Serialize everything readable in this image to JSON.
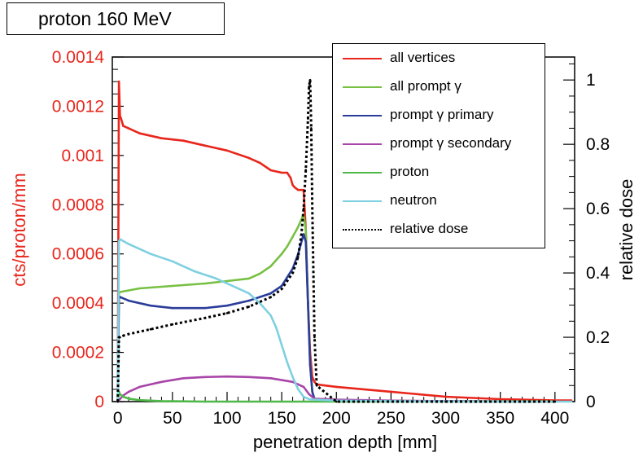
{
  "title": "proton 160 MeV",
  "chart_data": {
    "type": "line",
    "xlabel": "penetration depth [mm]",
    "ylabel_left": "cts/proton/mm",
    "ylabel_right": "relative dose",
    "xlim": [
      -5,
      418
    ],
    "ylim_left": [
      0,
      0.0014
    ],
    "ylim_right": [
      0,
      1.0714
    ],
    "x_ticks": [
      "0",
      "50",
      "100",
      "150",
      "200",
      "250",
      "300",
      "350",
      "400"
    ],
    "y_left_ticks": [
      "0",
      "0.0002",
      "0.0004",
      "0.0006",
      "0.0008",
      "0.001",
      "0.0012",
      "0.0014"
    ],
    "y_right_ticks": [
      "0",
      "0.2",
      "0.4",
      "0.6",
      "0.8",
      "1"
    ],
    "legend_position": "top-right",
    "colors": {
      "all_vertices": "#e8261c",
      "all_prompt_gamma": "#77c043",
      "prompt_gamma_primary": "#2b3d9a",
      "prompt_gamma_secondary": "#a845a8",
      "proton": "#4fb848",
      "neutron": "#7fd0e0",
      "relative_dose": "#000000",
      "left_axis": "#e8261c"
    },
    "series": [
      {
        "name": "all vertices",
        "key": "all_vertices",
        "axis": "left",
        "x": [
          0,
          1,
          2,
          3,
          5,
          10,
          20,
          40,
          60,
          80,
          100,
          120,
          130,
          140,
          150,
          155,
          158,
          160,
          162,
          165,
          168,
          170,
          172,
          174,
          176,
          178,
          180,
          182,
          200,
          250,
          300,
          350,
          400,
          415
        ],
        "y": [
          0.0,
          0.0013,
          0.00116,
          0.00115,
          0.00112,
          0.00111,
          0.00109,
          0.00107,
          0.00106,
          0.00104,
          0.00102,
          0.00099,
          0.00097,
          0.00094,
          0.00093,
          0.00093,
          0.00091,
          0.00088,
          0.00087,
          0.00086,
          0.00086,
          0.00086,
          0.0007,
          0.0004,
          0.0002,
          0.0001,
          8e-05,
          7e-05,
          6e-05,
          4e-05,
          2e-05,
          1e-05,
          5e-06,
          5e-06
        ]
      },
      {
        "name": "all prompt γ",
        "key": "all_prompt_gamma",
        "axis": "left",
        "x": [
          0,
          1,
          2,
          20,
          50,
          80,
          100,
          120,
          130,
          140,
          150,
          155,
          160,
          165,
          168,
          170,
          172,
          174,
          176,
          178,
          180,
          200,
          300,
          400
        ],
        "y": [
          0.0,
          0.00044,
          0.000445,
          0.00046,
          0.00047,
          0.00048,
          0.00049,
          0.0005,
          0.00052,
          0.00055,
          0.0006,
          0.00063,
          0.00067,
          0.00071,
          0.00074,
          0.00076,
          0.0007,
          0.0004,
          0.00015,
          4e-05,
          1e-05,
          5e-06,
          2e-06,
          1e-06
        ]
      },
      {
        "name": "prompt γ primary",
        "key": "prompt_gamma_primary",
        "axis": "left",
        "x": [
          0,
          1,
          2,
          10,
          30,
          50,
          80,
          100,
          120,
          140,
          150,
          160,
          165,
          170,
          172,
          174,
          176,
          178,
          180,
          200,
          300,
          400
        ],
        "y": [
          0.0,
          0.00042,
          0.000425,
          0.00041,
          0.00039,
          0.00038,
          0.00038,
          0.00039,
          0.00041,
          0.00044,
          0.00047,
          0.00054,
          0.0006,
          0.00068,
          0.00065,
          0.0004,
          0.00015,
          4e-05,
          1e-05,
          3e-06,
          1e-06,
          0.0
        ]
      },
      {
        "name": "prompt γ secondary",
        "key": "prompt_gamma_secondary",
        "axis": "left",
        "x": [
          0,
          5,
          10,
          20,
          40,
          60,
          80,
          100,
          120,
          140,
          160,
          170,
          175,
          180,
          200,
          250,
          300,
          350,
          400
        ],
        "y": [
          0.0,
          2.5e-05,
          4e-05,
          6e-05,
          8e-05,
          9.5e-05,
          0.0001,
          0.000102,
          0.0001,
          9.5e-05,
          8e-05,
          6e-05,
          3e-05,
          1.2e-05,
          8e-06,
          4e-06,
          2e-06,
          1e-06,
          0.0
        ]
      },
      {
        "name": "proton",
        "key": "proton",
        "axis": "left",
        "x": [
          0,
          1,
          2,
          5,
          10,
          20,
          40,
          60,
          80,
          100,
          150,
          200,
          300,
          400
        ],
        "y": [
          0.0,
          4e-05,
          3e-05,
          2e-05,
          1.2e-05,
          6e-06,
          2e-06,
          1e-06,
          0.0,
          0.0,
          0.0,
          0.0,
          0.0,
          0.0
        ]
      },
      {
        "name": "neutron",
        "key": "neutron",
        "axis": "left",
        "x": [
          0,
          1,
          2,
          10,
          30,
          50,
          70,
          90,
          110,
          120,
          130,
          140,
          145,
          150,
          155,
          160,
          165,
          170,
          175,
          180,
          200,
          250,
          300,
          350,
          400,
          415
        ],
        "y": [
          0.0,
          0.00065,
          0.00066,
          0.00064,
          0.0006,
          0.00057,
          0.00053,
          0.0005,
          0.00046,
          0.00044,
          0.0004,
          0.00035,
          0.0003,
          0.00023,
          0.00016,
          0.0001,
          5e-05,
          2e-05,
          1e-05,
          8e-06,
          4e-06,
          2e-06,
          1e-06,
          0.0,
          0.0,
          0.0
        ]
      },
      {
        "name": "relative dose",
        "key": "relative_dose",
        "axis": "right",
        "x": [
          0,
          1,
          2,
          5,
          10,
          30,
          50,
          80,
          100,
          120,
          140,
          150,
          160,
          165,
          168,
          170,
          172,
          174,
          175,
          176,
          177,
          178,
          180,
          182,
          200,
          300,
          400
        ],
        "y": [
          0.0,
          0.2,
          0.2,
          0.205,
          0.21,
          0.225,
          0.24,
          0.26,
          0.275,
          0.295,
          0.325,
          0.35,
          0.4,
          0.45,
          0.52,
          0.6,
          0.72,
          0.88,
          0.98,
          1.0,
          0.85,
          0.6,
          0.2,
          0.05,
          0.0,
          0.0,
          0.0
        ]
      }
    ]
  }
}
